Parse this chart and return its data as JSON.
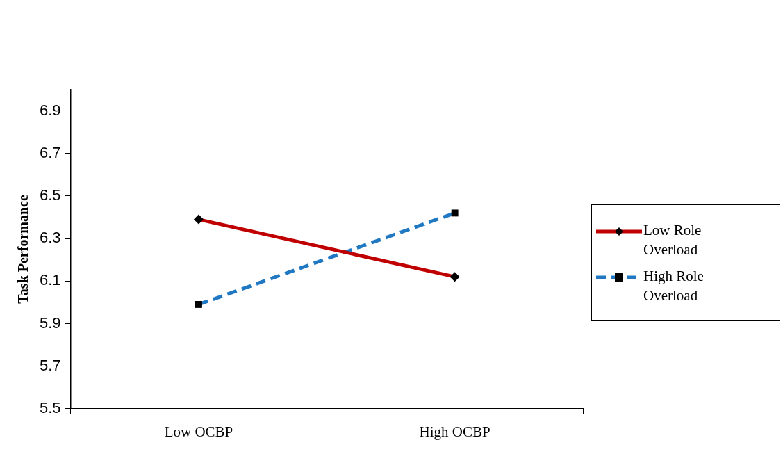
{
  "chart_data": {
    "type": "line",
    "ylabel": "Task Performance",
    "categories": [
      "Low OCBP",
      "High OCBP"
    ],
    "series": [
      {
        "name": "Low Role Overload",
        "color": "#c00000",
        "values": [
          6.39,
          6.12
        ],
        "marker": "diamond",
        "line_style": "solid"
      },
      {
        "name": "High Role Overload",
        "color": "#1f78c1",
        "values": [
          5.99,
          6.42
        ],
        "marker": "square",
        "line_style": "dashed"
      }
    ],
    "ylim": [
      5.5,
      7.0
    ],
    "yticks": [
      5.5,
      5.7,
      5.9,
      6.1,
      6.3,
      6.5,
      6.7,
      6.9
    ],
    "grid": false,
    "legend": "right"
  }
}
